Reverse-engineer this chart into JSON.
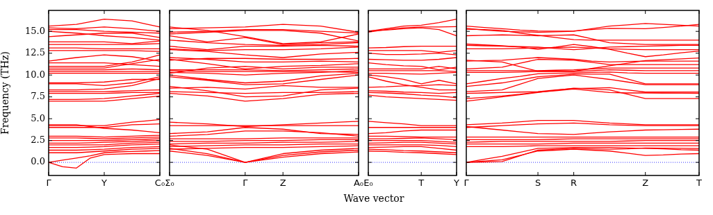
{
  "chart_data": [
    {
      "type": "line",
      "ylabel": "Frequency (THz)",
      "categories": [
        "Γ",
        null,
        null,
        null,
        "Y",
        null,
        null,
        null,
        "C₀"
      ],
      "ylim": [
        -1.5,
        17.4
      ],
      "yticks": [
        {
          "value": 0,
          "label": "0.0"
        },
        {
          "value": 2.5,
          "label": "2.5"
        },
        {
          "value": 5,
          "label": "5.0"
        },
        {
          "value": 7.5,
          "label": "7.5"
        },
        {
          "value": 10,
          "label": "10.0"
        },
        {
          "value": 12.5,
          "label": "12.5"
        },
        {
          "value": 15,
          "label": "15.0"
        }
      ],
      "grid": false,
      "legend": false,
      "marker": "none",
      "line_style": "solid",
      "ref_lines": [
        {
          "axis": "y",
          "value": 0,
          "color": "#0000ff",
          "line_style": "dotted"
        }
      ],
      "series": [
        {
          "color": "#ff0000",
          "values": [
            0,
            -0.5,
            -0.65,
            0.5,
            0.9,
            0.95,
            1.0,
            1.0,
            1.0
          ]
        },
        {
          "color": "#ff0000",
          "values": [
            0,
            0.25,
            0.5,
            0.75,
            1.1,
            1.2,
            1.25,
            1.3,
            1.35
          ]
        },
        {
          "color": "#ff0000",
          "values": [
            1.1,
            1.1,
            1.1,
            1.2,
            1.3,
            1.4,
            1.5,
            1.55,
            1.6
          ]
        },
        {
          "color": "#ff0000",
          "values": [
            1.4,
            1.4,
            1.4,
            1.45,
            1.5,
            1.6,
            1.7,
            1.75,
            1.8
          ]
        },
        {
          "color": "#ff0000",
          "values": [
            1.7,
            1.7,
            1.7,
            1.75,
            1.8,
            1.9,
            2.0,
            2.05,
            2.1
          ]
        },
        {
          "color": "#ff0000",
          "values": [
            2.0,
            2.0,
            2.0,
            2.0,
            2.0,
            2.1,
            2.2,
            2.25,
            2.3
          ]
        },
        {
          "color": "#ff0000",
          "values": [
            2.2,
            2.2,
            2.2,
            2.25,
            2.3,
            2.35,
            2.4,
            2.45,
            2.5
          ]
        },
        {
          "color": "#ff0000",
          "values": [
            2.5,
            2.5,
            2.5,
            2.5,
            2.5,
            2.55,
            2.6,
            2.65,
            2.7
          ]
        },
        {
          "color": "#ff0000",
          "values": [
            2.8,
            2.8,
            2.8,
            2.75,
            2.7,
            2.75,
            2.8,
            2.85,
            2.9
          ]
        },
        {
          "color": "#ff0000",
          "values": [
            3.0,
            3.0,
            3.0,
            2.95,
            2.9,
            2.95,
            3.0,
            3.05,
            3.1
          ]
        },
        {
          "color": "#ff0000",
          "values": [
            4.2,
            4.2,
            4.2,
            4.2,
            4.2,
            4.4,
            4.6,
            4.75,
            4.9
          ]
        },
        {
          "color": "#ff0000",
          "values": [
            4.0,
            4.0,
            4.0,
            4.0,
            4.0,
            4.15,
            4.3,
            4.35,
            4.4
          ]
        },
        {
          "color": "#ff0000",
          "values": [
            4.3,
            4.3,
            4.3,
            4.1,
            3.9,
            3.8,
            3.7,
            3.55,
            3.4
          ]
        },
        {
          "color": "#ff0000",
          "values": [
            7.0,
            7.0,
            7.0,
            7.0,
            7.0,
            7.15,
            7.3,
            7.45,
            7.6
          ]
        },
        {
          "color": "#ff0000",
          "values": [
            7.2,
            7.2,
            7.2,
            7.25,
            7.3,
            7.45,
            7.6,
            7.75,
            7.9
          ]
        },
        {
          "color": "#ff0000",
          "values": [
            7.9,
            7.9,
            7.9,
            7.9,
            7.9,
            7.95,
            8.0,
            8.0,
            8.0
          ]
        },
        {
          "color": "#ff0000",
          "values": [
            8.1,
            8.1,
            8.1,
            8.1,
            8.1,
            8.15,
            8.2,
            8.25,
            8.3
          ]
        },
        {
          "color": "#ff0000",
          "values": [
            8.3,
            8.3,
            8.3,
            8.35,
            8.4,
            8.6,
            8.8,
            9.2,
            9.6
          ]
        },
        {
          "color": "#ff0000",
          "values": [
            9.0,
            9.0,
            9.0,
            8.9,
            8.8,
            8.95,
            9.1,
            9.45,
            9.8
          ]
        },
        {
          "color": "#ff0000",
          "values": [
            9.1,
            9.1,
            9.1,
            9.15,
            9.2,
            9.35,
            9.5,
            9.5,
            9.5
          ]
        },
        {
          "color": "#ff0000",
          "values": [
            10.2,
            10.2,
            10.2,
            10.2,
            10.2,
            10.2,
            10.2,
            10.2,
            10.2
          ]
        },
        {
          "color": "#ff0000",
          "values": [
            10.4,
            10.4,
            10.4,
            10.4,
            10.4,
            10.4,
            10.4,
            10.4,
            10.4
          ]
        },
        {
          "color": "#ff0000",
          "values": [
            10.6,
            10.6,
            10.6,
            10.6,
            10.6,
            10.65,
            10.7,
            10.65,
            10.6
          ]
        },
        {
          "color": "#ff0000",
          "values": [
            10.8,
            10.8,
            10.8,
            10.8,
            10.8,
            11.05,
            11.3,
            11.55,
            11.8
          ]
        },
        {
          "color": "#ff0000",
          "values": [
            11.0,
            11.0,
            11.0,
            11.0,
            11.0,
            11.25,
            11.5,
            11.9,
            12.3
          ]
        },
        {
          "color": "#ff0000",
          "values": [
            11.6,
            11.8,
            12.0,
            12.15,
            12.3,
            12.2,
            12.1,
            11.85,
            11.6
          ]
        },
        {
          "color": "#ff0000",
          "values": [
            11.4,
            11.4,
            11.4,
            11.4,
            11.4,
            11.3,
            11.2,
            11.1,
            11.0
          ]
        },
        {
          "color": "#ff0000",
          "values": [
            12.8,
            12.8,
            12.8,
            12.8,
            12.8,
            12.8,
            12.8,
            12.75,
            12.7
          ]
        },
        {
          "color": "#ff0000",
          "values": [
            13.1,
            13.1,
            13.1,
            13.05,
            13.0,
            13.0,
            13.0,
            13.0,
            13.0
          ]
        },
        {
          "color": "#ff0000",
          "values": [
            13.5,
            13.5,
            13.5,
            13.5,
            13.5,
            13.5,
            13.5,
            13.55,
            13.6
          ]
        },
        {
          "color": "#ff0000",
          "values": [
            13.8,
            13.8,
            13.8,
            13.8,
            13.8,
            13.7,
            13.6,
            13.75,
            13.9
          ]
        },
        {
          "color": "#ff0000",
          "values": [
            14.4,
            14.5,
            14.6,
            14.7,
            14.8,
            14.8,
            14.8,
            14.55,
            14.3
          ]
        },
        {
          "color": "#ff0000",
          "values": [
            15.0,
            14.9,
            14.8,
            14.65,
            14.5,
            14.4,
            14.3,
            14.15,
            14.0
          ]
        },
        {
          "color": "#ff0000",
          "values": [
            15.2,
            15.2,
            15.2,
            15.1,
            15.0,
            14.95,
            14.9,
            14.85,
            14.8
          ]
        },
        {
          "color": "#ff0000",
          "values": [
            15.4,
            15.35,
            15.3,
            15.4,
            15.5,
            15.4,
            15.3,
            15.15,
            15.0
          ]
        },
        {
          "color": "#ff0000",
          "values": [
            15.6,
            15.7,
            15.8,
            16.1,
            16.4,
            16.3,
            16.2,
            15.85,
            15.5
          ]
        }
      ]
    },
    {
      "type": "line",
      "xlabel": "Wave vector",
      "categories": [
        "Σ₀",
        null,
        "Γ",
        "Z",
        null,
        "A₀"
      ],
      "ylim": [
        -1.5,
        17.4
      ],
      "yticks": [
        {
          "value": 0,
          "label": null
        },
        {
          "value": 2.5,
          "label": null
        },
        {
          "value": 5,
          "label": null
        },
        {
          "value": 7.5,
          "label": null
        },
        {
          "value": 10,
          "label": null
        },
        {
          "value": 12.5,
          "label": null
        },
        {
          "value": 15,
          "label": null
        }
      ],
      "tick_labels": "x",
      "grid": false,
      "legend": false,
      "marker": "none",
      "line_style": "solid",
      "ref_lines": [
        {
          "axis": "y",
          "value": 0,
          "color": "#0000ff",
          "line_style": "dotted"
        }
      ],
      "series": [
        {
          "color": "#ff0000",
          "values": [
            1.6,
            1.0,
            0,
            0.8,
            1.2,
            1.4
          ]
        },
        {
          "color": "#ff0000",
          "values": [
            1.3,
            0.8,
            0,
            0.6,
            1.0,
            1.2
          ]
        },
        {
          "color": "#ff0000",
          "values": [
            2.0,
            1.5,
            0,
            1.0,
            1.4,
            1.6
          ]
        },
        {
          "color": "#ff0000",
          "values": [
            1.5,
            1.6,
            1.7,
            1.7,
            1.8,
            1.9
          ]
        },
        {
          "color": "#ff0000",
          "values": [
            1.8,
            1.9,
            2.0,
            2.0,
            2.1,
            2.1
          ]
        },
        {
          "color": "#ff0000",
          "values": [
            2.1,
            2.2,
            2.2,
            2.3,
            2.3,
            2.4
          ]
        },
        {
          "color": "#ff0000",
          "values": [
            2.4,
            2.4,
            2.5,
            2.5,
            2.6,
            2.6
          ]
        },
        {
          "color": "#ff0000",
          "values": [
            2.7,
            2.7,
            2.7,
            2.8,
            2.8,
            2.8
          ]
        },
        {
          "color": "#ff0000",
          "values": [
            3.0,
            3.2,
            3.6,
            3.6,
            3.4,
            3.0
          ]
        },
        {
          "color": "#ff0000",
          "values": [
            3.3,
            3.5,
            4.0,
            3.8,
            3.3,
            3.2
          ]
        },
        {
          "color": "#ff0000",
          "values": [
            4.2,
            4.2,
            4.2,
            4.2,
            4.2,
            4.2
          ]
        },
        {
          "color": "#ff0000",
          "values": [
            4.6,
            4.4,
            4.1,
            4.3,
            4.5,
            4.7
          ]
        },
        {
          "color": "#ff0000",
          "values": [
            7.9,
            7.6,
            7.0,
            7.3,
            7.8,
            7.9
          ]
        },
        {
          "color": "#ff0000",
          "values": [
            8.7,
            8.2,
            7.5,
            7.6,
            8.3,
            8.5
          ]
        },
        {
          "color": "#ff0000",
          "values": [
            8.1,
            8.0,
            7.9,
            8.0,
            8.0,
            8.1
          ]
        },
        {
          "color": "#ff0000",
          "values": [
            8.5,
            8.6,
            8.4,
            8.8,
            8.6,
            8.6
          ]
        },
        {
          "color": "#ff0000",
          "values": [
            9.8,
            9.4,
            8.9,
            9.0,
            9.5,
            10.0
          ]
        },
        {
          "color": "#ff0000",
          "values": [
            10.0,
            9.5,
            9.1,
            9.3,
            9.9,
            10.2
          ]
        },
        {
          "color": "#ff0000",
          "values": [
            10.3,
            10.2,
            10.0,
            10.2,
            10.3,
            10.5
          ]
        },
        {
          "color": "#ff0000",
          "values": [
            10.5,
            10.4,
            10.4,
            10.4,
            10.4,
            10.3
          ]
        },
        {
          "color": "#ff0000",
          "values": [
            10.6,
            10.6,
            10.6,
            10.5,
            10.6,
            10.7
          ]
        },
        {
          "color": "#ff0000",
          "values": [
            10.2,
            10.8,
            11.0,
            10.7,
            10.9,
            10.9
          ]
        },
        {
          "color": "#ff0000",
          "values": [
            11.8,
            11.3,
            10.7,
            11.0,
            11.1,
            11.3
          ]
        },
        {
          "color": "#ff0000",
          "values": [
            12.0,
            11.8,
            11.5,
            11.5,
            11.6,
            11.5
          ]
        },
        {
          "color": "#ff0000",
          "values": [
            11.7,
            11.9,
            11.9,
            11.8,
            11.8,
            11.9
          ]
        },
        {
          "color": "#ff0000",
          "values": [
            12.9,
            12.7,
            12.3,
            12.0,
            12.4,
            12.6
          ]
        },
        {
          "color": "#ff0000",
          "values": [
            13.0,
            12.8,
            12.9,
            12.9,
            13.0,
            13.2
          ]
        },
        {
          "color": "#ff0000",
          "values": [
            13.3,
            12.9,
            13.3,
            13.3,
            13.4,
            13.3
          ]
        },
        {
          "color": "#ff0000",
          "values": [
            14.0,
            13.7,
            13.5,
            13.4,
            13.5,
            13.7
          ]
        },
        {
          "color": "#ff0000",
          "values": [
            14.5,
            13.8,
            14.3,
            13.5,
            13.7,
            13.8
          ]
        },
        {
          "color": "#ff0000",
          "values": [
            14.9,
            15.0,
            15.2,
            15.2,
            15.0,
            14.8
          ]
        },
        {
          "color": "#ff0000",
          "values": [
            15.3,
            15.4,
            15.5,
            15.8,
            15.6,
            14.9
          ]
        },
        {
          "color": "#ff0000",
          "values": [
            15.5,
            15.1,
            14.4,
            13.6,
            13.8,
            14.7
          ]
        },
        {
          "color": "#ff0000",
          "values": [
            14.7,
            14.9,
            15.1,
            15.1,
            14.8,
            13.9
          ]
        }
      ]
    },
    {
      "type": "line",
      "categories": [
        "E₀",
        null,
        null,
        "T",
        null,
        "Y"
      ],
      "ylim": [
        -1.5,
        17.4
      ],
      "yticks": [
        {
          "value": 0,
          "label": null
        },
        {
          "value": 2.5,
          "label": null
        },
        {
          "value": 5,
          "label": null
        },
        {
          "value": 7.5,
          "label": null
        },
        {
          "value": 10,
          "label": null
        },
        {
          "value": 12.5,
          "label": null
        },
        {
          "value": 15,
          "label": null
        }
      ],
      "tick_labels": "x",
      "grid": false,
      "legend": false,
      "marker": "none",
      "line_style": "solid",
      "ref_lines": [
        {
          "axis": "y",
          "value": 0,
          "color": "#0000ff",
          "line_style": "dotted"
        }
      ],
      "series": [
        {
          "color": "#ff0000",
          "values": [
            1.3,
            1.25,
            1.15,
            1.1,
            1.0,
            0.9
          ]
        },
        {
          "color": "#ff0000",
          "values": [
            1.5,
            1.45,
            1.35,
            1.3,
            1.2,
            1.1
          ]
        },
        {
          "color": "#ff0000",
          "values": [
            1.7,
            1.75,
            1.8,
            1.8,
            1.6,
            1.4
          ]
        },
        {
          "color": "#ff0000",
          "values": [
            2.0,
            2.0,
            2.0,
            2.0,
            1.95,
            1.8
          ]
        },
        {
          "color": "#ff0000",
          "values": [
            2.2,
            2.25,
            2.3,
            2.3,
            2.2,
            2.1
          ]
        },
        {
          "color": "#ff0000",
          "values": [
            2.5,
            2.5,
            2.5,
            2.5,
            2.4,
            2.3
          ]
        },
        {
          "color": "#ff0000",
          "values": [
            2.7,
            2.7,
            2.75,
            2.8,
            2.7,
            2.6
          ]
        },
        {
          "color": "#ff0000",
          "values": [
            3.0,
            3.0,
            2.95,
            2.9,
            2.9,
            2.9
          ]
        },
        {
          "color": "#ff0000",
          "values": [
            3.3,
            3.4,
            3.6,
            3.7,
            3.7,
            3.7
          ]
        },
        {
          "color": "#ff0000",
          "values": [
            4.0,
            4.0,
            4.0,
            4.0,
            4.0,
            4.0
          ]
        },
        {
          "color": "#ff0000",
          "values": [
            4.7,
            4.55,
            4.4,
            4.2,
            4.2,
            4.2
          ]
        },
        {
          "color": "#ff0000",
          "values": [
            7.7,
            7.5,
            7.4,
            7.3,
            7.2,
            7.1
          ]
        },
        {
          "color": "#ff0000",
          "values": [
            8.0,
            7.95,
            7.85,
            7.7,
            7.6,
            7.4
          ]
        },
        {
          "color": "#ff0000",
          "values": [
            8.2,
            8.15,
            8.05,
            8.0,
            7.9,
            8.0
          ]
        },
        {
          "color": "#ff0000",
          "values": [
            9.8,
            9.3,
            8.9,
            8.6,
            8.3,
            8.3
          ]
        },
        {
          "color": "#ff0000",
          "values": [
            8.6,
            8.65,
            8.75,
            8.8,
            8.9,
            8.8
          ]
        },
        {
          "color": "#ff0000",
          "values": [
            10.0,
            9.8,
            9.5,
            9.0,
            9.4,
            9.0
          ]
        },
        {
          "color": "#ff0000",
          "values": [
            10.2,
            10.2,
            10.15,
            10.1,
            10.2,
            10.3
          ]
        },
        {
          "color": "#ff0000",
          "values": [
            10.5,
            10.5,
            10.5,
            10.5,
            10.5,
            10.4
          ]
        },
        {
          "color": "#ff0000",
          "values": [
            10.7,
            10.7,
            10.7,
            10.7,
            11.0,
            10.7
          ]
        },
        {
          "color": "#ff0000",
          "values": [
            11.4,
            11.2,
            11.05,
            11.0,
            10.6,
            10.9
          ]
        },
        {
          "color": "#ff0000",
          "values": [
            11.8,
            11.75,
            11.7,
            11.7,
            11.8,
            12.0
          ]
        },
        {
          "color": "#ff0000",
          "values": [
            12.5,
            12.35,
            12.35,
            12.4,
            12.5,
            12.3
          ]
        },
        {
          "color": "#ff0000",
          "values": [
            12.8,
            12.8,
            12.8,
            12.8,
            12.6,
            12.8
          ]
        },
        {
          "color": "#ff0000",
          "values": [
            13.1,
            13.15,
            13.25,
            13.3,
            13.3,
            13.3
          ]
        },
        {
          "color": "#ff0000",
          "values": [
            14.9,
            15.2,
            15.4,
            15.5,
            15.5,
            15.55
          ]
        },
        {
          "color": "#ff0000",
          "values": [
            15.0,
            15.3,
            15.6,
            15.7,
            16.0,
            16.4
          ]
        },
        {
          "color": "#ff0000",
          "values": [
            15.05,
            15.15,
            15.3,
            15.4,
            15.2,
            14.5
          ]
        }
      ]
    },
    {
      "type": "line",
      "categories": [
        "Γ",
        null,
        null,
        null,
        "S",
        null,
        "R",
        null,
        null,
        null,
        "Z",
        null,
        null,
        "T"
      ],
      "ylim": [
        -1.5,
        17.4
      ],
      "yticks": [
        {
          "value": 0,
          "label": null
        },
        {
          "value": 2.5,
          "label": null
        },
        {
          "value": 5,
          "label": null
        },
        {
          "value": 7.5,
          "label": null
        },
        {
          "value": 10,
          "label": null
        },
        {
          "value": 12.5,
          "label": null
        },
        {
          "value": 15,
          "label": null
        }
      ],
      "tick_labels": "x",
      "grid": false,
      "legend": false,
      "marker": "none",
      "line_style": "solid",
      "ref_lines": [
        {
          "axis": "y",
          "value": 0,
          "color": "#0000ff",
          "line_style": "dotted"
        }
      ],
      "series": [
        {
          "color": "#ff0000",
          "values": [
            0,
            0.15,
            0.3,
            0.8,
            1.3,
            1.4,
            1.5,
            1.4,
            1.3,
            1.05,
            0.8,
            0.85,
            0.95,
            1.0
          ]
        },
        {
          "color": "#ff0000",
          "values": [
            0,
            0.35,
            0.7,
            1.15,
            1.6,
            1.65,
            1.7,
            1.7,
            1.7,
            1.65,
            1.6,
            1.55,
            1.45,
            1.4
          ]
        },
        {
          "color": "#ff0000",
          "values": [
            0,
            0.05,
            0.1,
            0.75,
            1.4,
            1.5,
            1.6,
            1.55,
            1.5,
            1.55,
            1.65,
            1.62,
            1.6,
            1.58
          ]
        },
        {
          "color": "#ff0000",
          "values": [
            1.8,
            1.8,
            1.8,
            1.85,
            1.9,
            1.9,
            1.9,
            1.9,
            1.9,
            1.9,
            1.9,
            1.9,
            1.9,
            1.9
          ]
        },
        {
          "color": "#ff0000",
          "values": [
            2.1,
            2.1,
            2.1,
            2.1,
            2.1,
            2.15,
            2.2,
            2.2,
            2.2,
            2.2,
            2.2,
            2.2,
            2.2,
            2.2
          ]
        },
        {
          "color": "#ff0000",
          "values": [
            2.3,
            2.35,
            2.4,
            2.4,
            2.4,
            2.4,
            2.4,
            2.4,
            2.4,
            2.45,
            2.5,
            2.5,
            2.5,
            2.5
          ]
        },
        {
          "color": "#ff0000",
          "values": [
            2.6,
            2.6,
            2.6,
            2.6,
            2.6,
            2.65,
            2.7,
            2.7,
            2.7,
            2.7,
            2.7,
            2.7,
            2.7,
            2.7
          ]
        },
        {
          "color": "#ff0000",
          "values": [
            2.9,
            2.9,
            2.9,
            2.9,
            2.9,
            2.9,
            2.9,
            2.9,
            2.9,
            2.9,
            2.9,
            2.9,
            2.9,
            2.9
          ]
        },
        {
          "color": "#ff0000",
          "values": [
            4.1,
            3.9,
            3.7,
            3.5,
            3.3,
            3.25,
            3.2,
            3.35,
            3.5,
            3.6,
            3.7,
            3.73,
            3.77,
            3.8
          ]
        },
        {
          "color": "#ff0000",
          "values": [
            4.0,
            4.1,
            4.2,
            4.3,
            4.4,
            4.45,
            4.5,
            4.4,
            4.3,
            4.25,
            4.2,
            4.2,
            4.2,
            4.2
          ]
        },
        {
          "color": "#ff0000",
          "values": [
            4.3,
            4.4,
            4.5,
            4.65,
            4.8,
            4.8,
            4.8,
            4.65,
            4.5,
            4.4,
            4.3,
            4.3,
            4.3,
            4.3
          ]
        },
        {
          "color": "#ff0000",
          "values": [
            7.0,
            7.25,
            7.5,
            7.75,
            8.0,
            8.25,
            8.5,
            8.4,
            8.3,
            7.8,
            7.3,
            7.3,
            7.3,
            7.3
          ]
        },
        {
          "color": "#ff0000",
          "values": [
            7.3,
            7.45,
            7.6,
            7.8,
            8.05,
            8.2,
            8.4,
            8.2,
            8.0,
            7.95,
            7.95,
            7.93,
            7.92,
            7.9
          ]
        },
        {
          "color": "#ff0000",
          "values": [
            7.9,
            7.95,
            8.0,
            8.05,
            8.1,
            8.3,
            8.45,
            8.5,
            8.55,
            8.3,
            8.05,
            8.05,
            8.05,
            8.05
          ]
        },
        {
          "color": "#ff0000",
          "values": [
            8.1,
            8.2,
            8.3,
            8.95,
            9.6,
            9.8,
            10.0,
            9.75,
            9.5,
            9.2,
            8.9,
            8.9,
            8.9,
            8.9
          ]
        },
        {
          "color": "#ff0000",
          "values": [
            8.7,
            8.9,
            9.1,
            9.45,
            9.8,
            9.95,
            10.1,
            10.1,
            10.1,
            9.55,
            9.0,
            9.0,
            9.0,
            9.0
          ]
        },
        {
          "color": "#ff0000",
          "values": [
            9.0,
            9.3,
            9.6,
            9.85,
            10.15,
            10.2,
            10.25,
            10.3,
            10.35,
            10.25,
            10.2,
            10.2,
            10.2,
            10.2
          ]
        },
        {
          "color": "#ff0000",
          "values": [
            10.3,
            10.3,
            10.3,
            10.35,
            10.4,
            10.4,
            10.4,
            10.5,
            10.6,
            10.55,
            10.5,
            10.5,
            10.5,
            10.5
          ]
        },
        {
          "color": "#ff0000",
          "values": [
            10.5,
            10.5,
            10.5,
            10.5,
            10.5,
            10.55,
            10.6,
            10.7,
            10.8,
            10.8,
            10.8,
            10.8,
            10.8,
            10.8
          ]
        },
        {
          "color": "#ff0000",
          "values": [
            10.7,
            10.8,
            10.9,
            11.35,
            11.8,
            11.75,
            11.7,
            11.45,
            11.2,
            11.2,
            11.2,
            11.2,
            11.2,
            11.2
          ]
        },
        {
          "color": "#ff0000",
          "values": [
            11.6,
            11.65,
            11.7,
            11.85,
            12.0,
            11.9,
            11.8,
            11.6,
            11.5,
            11.55,
            11.6,
            11.6,
            11.6,
            11.6
          ]
        },
        {
          "color": "#ff0000",
          "values": [
            11.7,
            11.6,
            11.5,
            10.95,
            10.45,
            10.45,
            10.45,
            10.75,
            11.05,
            11.35,
            11.65,
            11.75,
            11.85,
            11.95
          ]
        },
        {
          "color": "#ff0000",
          "values": [
            13.0,
            13.0,
            13.0,
            13.05,
            13.1,
            13.15,
            13.2,
            13.1,
            13.0,
            12.95,
            12.9,
            12.9,
            12.9,
            12.9
          ]
        },
        {
          "color": "#ff0000",
          "values": [
            13.4,
            13.35,
            13.3,
            13.25,
            13.2,
            13.05,
            12.9,
            13.05,
            13.2,
            13.25,
            13.3,
            13.35,
            13.4,
            13.4
          ]
        },
        {
          "color": "#ff0000",
          "values": [
            13.55,
            13.45,
            13.35,
            13.2,
            12.95,
            13.2,
            13.5,
            13.25,
            12.95,
            12.5,
            12.1,
            12.3,
            12.55,
            12.75
          ]
        },
        {
          "color": "#ff0000",
          "values": [
            14.5,
            14.55,
            14.6,
            14.55,
            14.5,
            14.55,
            14.6,
            14.15,
            13.7,
            13.6,
            13.5,
            13.5,
            13.5,
            13.5
          ]
        },
        {
          "color": "#ff0000",
          "values": [
            15.25,
            15.2,
            15.1,
            14.8,
            14.55,
            14.3,
            14.05,
            14.0,
            14.0,
            14.0,
            14.0,
            14.0,
            14.0,
            14.0
          ]
        },
        {
          "color": "#ff0000",
          "values": [
            15.35,
            15.15,
            15.0,
            14.95,
            14.9,
            14.95,
            15.0,
            15.3,
            15.6,
            15.75,
            15.9,
            15.8,
            15.7,
            15.6
          ]
        },
        {
          "color": "#ff0000",
          "values": [
            15.6,
            15.45,
            15.3,
            15.15,
            15.05,
            15.02,
            15.05,
            15.2,
            15.35,
            15.32,
            15.3,
            15.45,
            15.6,
            15.8
          ]
        }
      ]
    }
  ]
}
